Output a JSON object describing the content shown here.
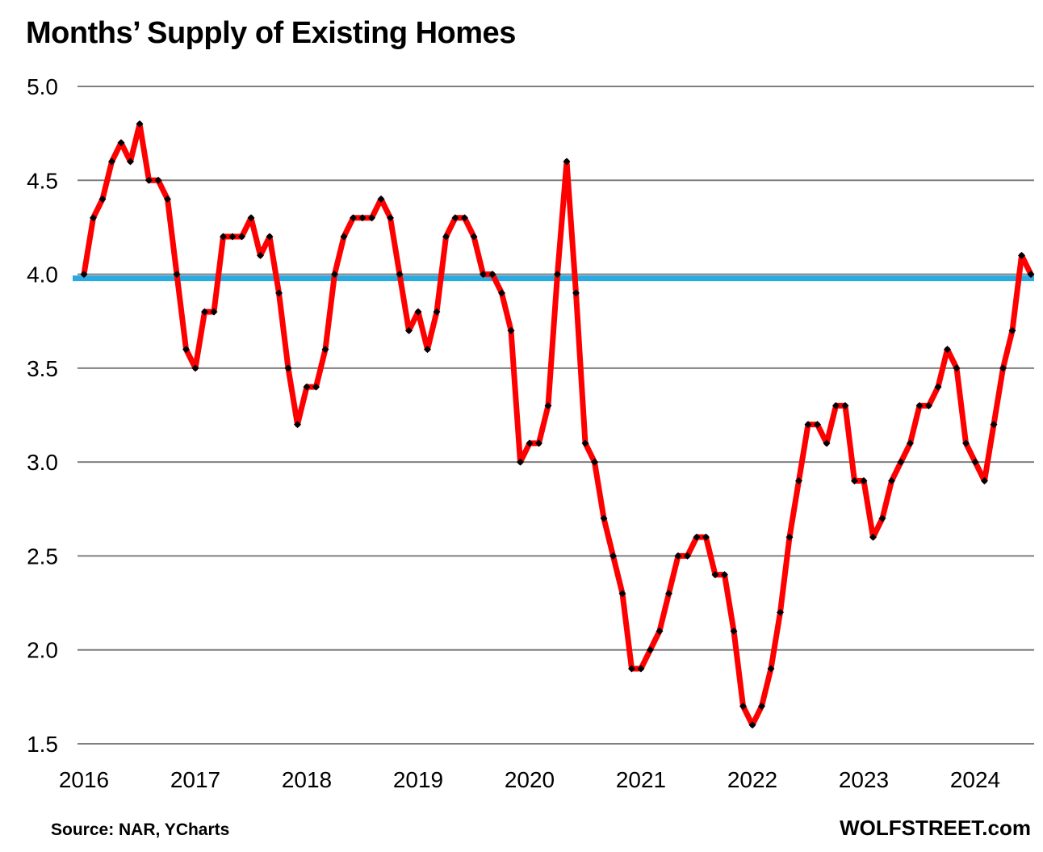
{
  "chart_data": {
    "type": "line",
    "title": "Months’ Supply of Existing Homes",
    "x_start": "2016-01",
    "frequency": "monthly",
    "x_tick_labels": [
      "2016",
      "2017",
      "2018",
      "2019",
      "2020",
      "2021",
      "2022",
      "2023",
      "2024"
    ],
    "y_tick_labels": [
      "5.0",
      "4.5",
      "4.0",
      "3.5",
      "3.0",
      "2.5",
      "2.0",
      "1.5"
    ],
    "ylim": [
      1.5,
      5.0
    ],
    "grid": "horizontal",
    "gridline_color": "#7f7f7f",
    "background_color": "#ffffff",
    "reference_line": {
      "value": 4.0,
      "color": "#29abe2"
    },
    "legend": "none",
    "series": [
      {
        "name": "Months' supply of existing homes",
        "color": "#ff0000",
        "marker": "diamond",
        "marker_color": "#000000",
        "values": [
          4.0,
          4.3,
          4.4,
          4.6,
          4.7,
          4.6,
          4.8,
          4.5,
          4.5,
          4.4,
          4.0,
          3.6,
          3.5,
          3.8,
          3.8,
          4.2,
          4.2,
          4.2,
          4.3,
          4.1,
          4.2,
          3.9,
          3.5,
          3.2,
          3.4,
          3.4,
          3.6,
          4.0,
          4.2,
          4.3,
          4.3,
          4.3,
          4.4,
          4.3,
          4.0,
          3.7,
          3.8,
          3.6,
          3.8,
          4.2,
          4.3,
          4.3,
          4.2,
          4.0,
          4.0,
          3.9,
          3.7,
          3.0,
          3.1,
          3.1,
          3.3,
          4.0,
          4.6,
          3.9,
          3.1,
          3.0,
          2.7,
          2.5,
          2.3,
          1.9,
          1.9,
          2.0,
          2.1,
          2.3,
          2.5,
          2.5,
          2.6,
          2.6,
          2.4,
          2.4,
          2.1,
          1.7,
          1.6,
          1.7,
          1.9,
          2.2,
          2.6,
          2.9,
          3.2,
          3.2,
          3.1,
          3.3,
          3.3,
          2.9,
          2.9,
          2.6,
          2.7,
          2.9,
          3.0,
          3.1,
          3.3,
          3.3,
          3.4,
          3.6,
          3.5,
          3.1,
          3.0,
          2.9,
          3.2,
          3.5,
          3.7,
          4.1,
          4.0
        ]
      }
    ]
  },
  "footer": {
    "source": "Source: NAR, YCharts",
    "brand": "WOLFSTREET.com"
  }
}
